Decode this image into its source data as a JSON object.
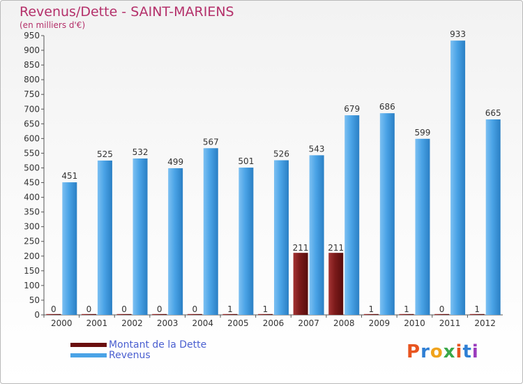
{
  "chart_data": {
    "type": "bar",
    "title": "Revenus/Dette - SAINT-MARIENS",
    "subtitle": "(en milliers d'€)",
    "categories": [
      "2000",
      "2001",
      "2002",
      "2003",
      "2004",
      "2005",
      "2006",
      "2007",
      "2008",
      "2009",
      "2010",
      "2011",
      "2012"
    ],
    "series": [
      {
        "name": "Montant de la Dette",
        "color": "#7a1a1a",
        "values": [
          0,
          0,
          0,
          0,
          0,
          1,
          1,
          211,
          211,
          1,
          1,
          0,
          1
        ]
      },
      {
        "name": "Revenus",
        "color": "#4aa3e6",
        "values": [
          451,
          525,
          532,
          499,
          567,
          501,
          526,
          543,
          679,
          686,
          599,
          933,
          665
        ]
      }
    ],
    "ylim": [
      0,
      950
    ],
    "yticks": [
      0,
      50,
      100,
      150,
      200,
      250,
      300,
      350,
      400,
      450,
      500,
      550,
      600,
      650,
      700,
      750,
      800,
      850,
      900,
      950
    ],
    "xlabel": "",
    "ylabel": "",
    "grid": false,
    "legend_position": "bottom-left"
  },
  "legend": {
    "debt_label": "Montant de la Dette",
    "revenue_label": "Revenus"
  },
  "logo": {
    "letters": [
      "P",
      "r",
      "o",
      "x",
      "i",
      "t",
      "i"
    ],
    "colors": [
      "#e8541f",
      "#2f7fd4",
      "#f0a31c",
      "#3aa84a",
      "#e8541f",
      "#2f7fd4",
      "#9b3bbd"
    ]
  }
}
